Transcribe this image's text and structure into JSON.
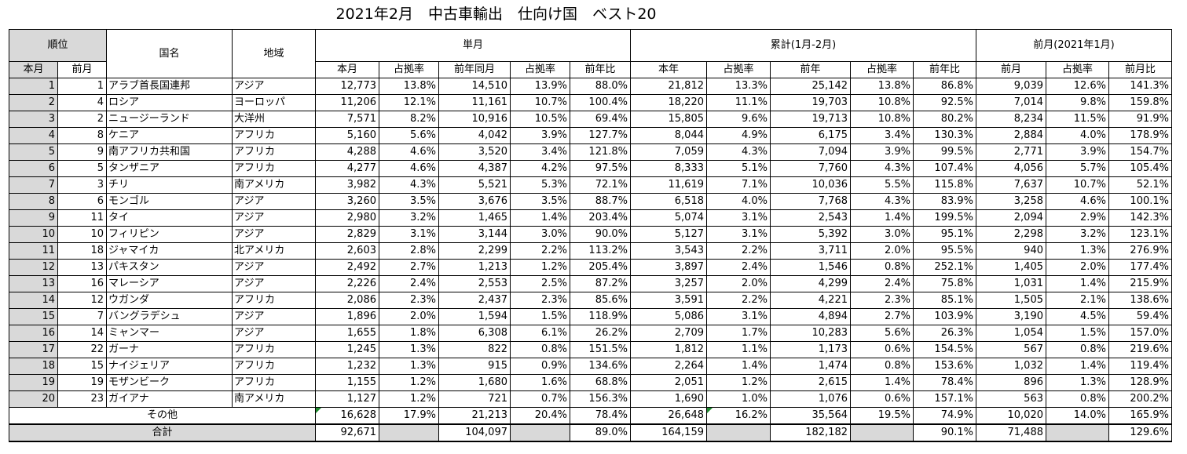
{
  "title": "2021年2月　中古車輸出　仕向け国　ベスト20",
  "headers": {
    "rank": "順位",
    "country": "国名",
    "region": "地域",
    "monthly": "単月",
    "cumulative": "累計(1月-2月)",
    "prev_month": "前月(2021年1月)",
    "rank_this": "本月",
    "rank_prev": "前月",
    "m_this": "本月",
    "m_share": "占拠率",
    "m_prev_year": "前年同月",
    "m_share2": "占拠率",
    "m_yoy": "前年比",
    "c_this": "本年",
    "c_share": "占拠率",
    "c_prev": "前年",
    "c_share2": "占拠率",
    "c_yoy": "前年比",
    "p_prev": "前月",
    "p_share": "占拠率",
    "p_ratio": "前月比"
  },
  "rows": [
    {
      "rank": "1",
      "prev_rank": "1",
      "country": "アラブ首長国連邦",
      "region": "アジア",
      "m_this": "12,773",
      "m_share": "13.8%",
      "m_prev_year": "14,510",
      "m_share2": "13.9%",
      "m_yoy": "88.0%",
      "c_this": "21,812",
      "c_share": "13.3%",
      "c_prev": "25,142",
      "c_share2": "13.8%",
      "c_yoy": "86.8%",
      "p_prev": "9,039",
      "p_share": "12.6%",
      "p_ratio": "141.3%"
    },
    {
      "rank": "2",
      "prev_rank": "4",
      "country": "ロシア",
      "region": "ヨーロッパ",
      "m_this": "11,206",
      "m_share": "12.1%",
      "m_prev_year": "11,161",
      "m_share2": "10.7%",
      "m_yoy": "100.4%",
      "c_this": "18,220",
      "c_share": "11.1%",
      "c_prev": "19,703",
      "c_share2": "10.8%",
      "c_yoy": "92.5%",
      "p_prev": "7,014",
      "p_share": "9.8%",
      "p_ratio": "159.8%"
    },
    {
      "rank": "3",
      "prev_rank": "2",
      "country": "ニュージーランド",
      "region": "大洋州",
      "m_this": "7,571",
      "m_share": "8.2%",
      "m_prev_year": "10,916",
      "m_share2": "10.5%",
      "m_yoy": "69.4%",
      "c_this": "15,805",
      "c_share": "9.6%",
      "c_prev": "19,713",
      "c_share2": "10.8%",
      "c_yoy": "80.2%",
      "p_prev": "8,234",
      "p_share": "11.5%",
      "p_ratio": "91.9%"
    },
    {
      "rank": "4",
      "prev_rank": "8",
      "country": "ケニア",
      "region": "アフリカ",
      "m_this": "5,160",
      "m_share": "5.6%",
      "m_prev_year": "4,042",
      "m_share2": "3.9%",
      "m_yoy": "127.7%",
      "c_this": "8,044",
      "c_share": "4.9%",
      "c_prev": "6,175",
      "c_share2": "3.4%",
      "c_yoy": "130.3%",
      "p_prev": "2,884",
      "p_share": "4.0%",
      "p_ratio": "178.9%"
    },
    {
      "rank": "5",
      "prev_rank": "9",
      "country": "南アフリカ共和国",
      "region": "アフリカ",
      "m_this": "4,288",
      "m_share": "4.6%",
      "m_prev_year": "3,520",
      "m_share2": "3.4%",
      "m_yoy": "121.8%",
      "c_this": "7,059",
      "c_share": "4.3%",
      "c_prev": "7,094",
      "c_share2": "3.9%",
      "c_yoy": "99.5%",
      "p_prev": "2,771",
      "p_share": "3.9%",
      "p_ratio": "154.7%"
    },
    {
      "rank": "6",
      "prev_rank": "5",
      "country": "タンザニア",
      "region": "アフリカ",
      "m_this": "4,277",
      "m_share": "4.6%",
      "m_prev_year": "4,387",
      "m_share2": "4.2%",
      "m_yoy": "97.5%",
      "c_this": "8,333",
      "c_share": "5.1%",
      "c_prev": "7,760",
      "c_share2": "4.3%",
      "c_yoy": "107.4%",
      "p_prev": "4,056",
      "p_share": "5.7%",
      "p_ratio": "105.4%"
    },
    {
      "rank": "7",
      "prev_rank": "3",
      "country": "チリ",
      "region": "南アメリカ",
      "m_this": "3,982",
      "m_share": "4.3%",
      "m_prev_year": "5,521",
      "m_share2": "5.3%",
      "m_yoy": "72.1%",
      "c_this": "11,619",
      "c_share": "7.1%",
      "c_prev": "10,036",
      "c_share2": "5.5%",
      "c_yoy": "115.8%",
      "p_prev": "7,637",
      "p_share": "10.7%",
      "p_ratio": "52.1%"
    },
    {
      "rank": "8",
      "prev_rank": "6",
      "country": "モンゴル",
      "region": "アジア",
      "m_this": "3,260",
      "m_share": "3.5%",
      "m_prev_year": "3,676",
      "m_share2": "3.5%",
      "m_yoy": "88.7%",
      "c_this": "6,518",
      "c_share": "4.0%",
      "c_prev": "7,768",
      "c_share2": "4.3%",
      "c_yoy": "83.9%",
      "p_prev": "3,258",
      "p_share": "4.6%",
      "p_ratio": "100.1%"
    },
    {
      "rank": "9",
      "prev_rank": "11",
      "country": "タイ",
      "region": "アジア",
      "m_this": "2,980",
      "m_share": "3.2%",
      "m_prev_year": "1,465",
      "m_share2": "1.4%",
      "m_yoy": "203.4%",
      "c_this": "5,074",
      "c_share": "3.1%",
      "c_prev": "2,543",
      "c_share2": "1.4%",
      "c_yoy": "199.5%",
      "p_prev": "2,094",
      "p_share": "2.9%",
      "p_ratio": "142.3%"
    },
    {
      "rank": "10",
      "prev_rank": "10",
      "country": "フィリピン",
      "region": "アジア",
      "m_this": "2,829",
      "m_share": "3.1%",
      "m_prev_year": "3,144",
      "m_share2": "3.0%",
      "m_yoy": "90.0%",
      "c_this": "5,127",
      "c_share": "3.1%",
      "c_prev": "5,392",
      "c_share2": "3.0%",
      "c_yoy": "95.1%",
      "p_prev": "2,298",
      "p_share": "3.2%",
      "p_ratio": "123.1%"
    },
    {
      "rank": "11",
      "prev_rank": "18",
      "country": "ジャマイカ",
      "region": "北アメリカ",
      "m_this": "2,603",
      "m_share": "2.8%",
      "m_prev_year": "2,299",
      "m_share2": "2.2%",
      "m_yoy": "113.2%",
      "c_this": "3,543",
      "c_share": "2.2%",
      "c_prev": "3,711",
      "c_share2": "2.0%",
      "c_yoy": "95.5%",
      "p_prev": "940",
      "p_share": "1.3%",
      "p_ratio": "276.9%"
    },
    {
      "rank": "12",
      "prev_rank": "13",
      "country": "パキスタン",
      "region": "アジア",
      "m_this": "2,492",
      "m_share": "2.7%",
      "m_prev_year": "1,213",
      "m_share2": "1.2%",
      "m_yoy": "205.4%",
      "c_this": "3,897",
      "c_share": "2.4%",
      "c_prev": "1,546",
      "c_share2": "0.8%",
      "c_yoy": "252.1%",
      "p_prev": "1,405",
      "p_share": "2.0%",
      "p_ratio": "177.4%"
    },
    {
      "rank": "13",
      "prev_rank": "16",
      "country": "マレーシア",
      "region": "アジア",
      "m_this": "2,226",
      "m_share": "2.4%",
      "m_prev_year": "2,553",
      "m_share2": "2.5%",
      "m_yoy": "87.2%",
      "c_this": "3,257",
      "c_share": "2.0%",
      "c_prev": "4,299",
      "c_share2": "2.4%",
      "c_yoy": "75.8%",
      "p_prev": "1,031",
      "p_share": "1.4%",
      "p_ratio": "215.9%"
    },
    {
      "rank": "14",
      "prev_rank": "12",
      "country": "ウガンダ",
      "region": "アフリカ",
      "m_this": "2,086",
      "m_share": "2.3%",
      "m_prev_year": "2,437",
      "m_share2": "2.3%",
      "m_yoy": "85.6%",
      "c_this": "3,591",
      "c_share": "2.2%",
      "c_prev": "4,221",
      "c_share2": "2.3%",
      "c_yoy": "85.1%",
      "p_prev": "1,505",
      "p_share": "2.1%",
      "p_ratio": "138.6%"
    },
    {
      "rank": "15",
      "prev_rank": "7",
      "country": "バングラデシュ",
      "region": "アジア",
      "m_this": "1,896",
      "m_share": "2.0%",
      "m_prev_year": "1,594",
      "m_share2": "1.5%",
      "m_yoy": "118.9%",
      "c_this": "5,086",
      "c_share": "3.1%",
      "c_prev": "4,894",
      "c_share2": "2.7%",
      "c_yoy": "103.9%",
      "p_prev": "3,190",
      "p_share": "4.5%",
      "p_ratio": "59.4%"
    },
    {
      "rank": "16",
      "prev_rank": "14",
      "country": "ミャンマー",
      "region": "アジア",
      "m_this": "1,655",
      "m_share": "1.8%",
      "m_prev_year": "6,308",
      "m_share2": "6.1%",
      "m_yoy": "26.2%",
      "c_this": "2,709",
      "c_share": "1.7%",
      "c_prev": "10,283",
      "c_share2": "5.6%",
      "c_yoy": "26.3%",
      "p_prev": "1,054",
      "p_share": "1.5%",
      "p_ratio": "157.0%"
    },
    {
      "rank": "17",
      "prev_rank": "22",
      "country": "ガーナ",
      "region": "アフリカ",
      "m_this": "1,245",
      "m_share": "1.3%",
      "m_prev_year": "822",
      "m_share2": "0.8%",
      "m_yoy": "151.5%",
      "c_this": "1,812",
      "c_share": "1.1%",
      "c_prev": "1,173",
      "c_share2": "0.6%",
      "c_yoy": "154.5%",
      "p_prev": "567",
      "p_share": "0.8%",
      "p_ratio": "219.6%"
    },
    {
      "rank": "18",
      "prev_rank": "15",
      "country": "ナイジェリア",
      "region": "アフリカ",
      "m_this": "1,232",
      "m_share": "1.3%",
      "m_prev_year": "915",
      "m_share2": "0.9%",
      "m_yoy": "134.6%",
      "c_this": "2,264",
      "c_share": "1.4%",
      "c_prev": "1,474",
      "c_share2": "0.8%",
      "c_yoy": "153.6%",
      "p_prev": "1,032",
      "p_share": "1.4%",
      "p_ratio": "119.4%"
    },
    {
      "rank": "19",
      "prev_rank": "19",
      "country": "モザンビーク",
      "region": "アフリカ",
      "m_this": "1,155",
      "m_share": "1.2%",
      "m_prev_year": "1,680",
      "m_share2": "1.6%",
      "m_yoy": "68.8%",
      "c_this": "2,051",
      "c_share": "1.2%",
      "c_prev": "2,615",
      "c_share2": "1.4%",
      "c_yoy": "78.4%",
      "p_prev": "896",
      "p_share": "1.3%",
      "p_ratio": "128.9%"
    },
    {
      "rank": "20",
      "prev_rank": "23",
      "country": "ガイアナ",
      "region": "南アメリカ",
      "m_this": "1,127",
      "m_share": "1.2%",
      "m_prev_year": "721",
      "m_share2": "0.7%",
      "m_yoy": "156.3%",
      "c_this": "1,690",
      "c_share": "1.0%",
      "c_prev": "1,076",
      "c_share2": "0.6%",
      "c_yoy": "157.1%",
      "p_prev": "563",
      "p_share": "0.8%",
      "p_ratio": "200.2%"
    }
  ],
  "other": {
    "label": "その他",
    "m_this": "16,628",
    "m_share": "17.9%",
    "m_prev_year": "21,213",
    "m_share2": "20.4%",
    "m_yoy": "78.4%",
    "c_this": "26,648",
    "c_share": "16.2%",
    "c_prev": "35,564",
    "c_share2": "19.5%",
    "c_yoy": "74.9%",
    "p_prev": "10,020",
    "p_share": "14.0%",
    "p_ratio": "165.9%"
  },
  "total": {
    "label": "合計",
    "m_this": "92,671",
    "m_prev_year": "104,097",
    "m_yoy": "89.0%",
    "c_this": "164,159",
    "c_prev": "182,182",
    "c_yoy": "90.1%",
    "p_prev": "71,488",
    "p_ratio": "129.6%"
  },
  "colors": {
    "rank_fill": "#d9d9d9",
    "error_marker": "#1e8c2e"
  }
}
